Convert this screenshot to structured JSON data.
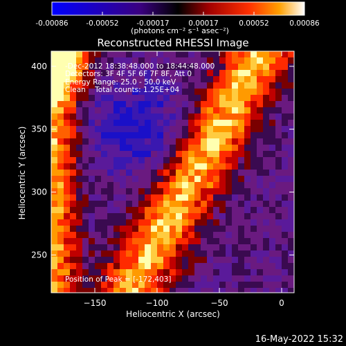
{
  "colorbar": {
    "ticks": [
      "-0.00086",
      "-0.00052",
      "-0.00017",
      "0.00017",
      "0.00052",
      "0.00086"
    ],
    "unit_label": "(photons cm⁻² s⁻¹ asec⁻²)"
  },
  "chart_data": {
    "type": "heatmap",
    "title": "Reconstructed RHESSI Image",
    "xlabel": "Heliocentric X (arcsec)",
    "ylabel": "Heliocentric Y (arcsec)",
    "xlim": [
      -185,
      10
    ],
    "ylim": [
      220,
      412
    ],
    "xticks": [
      -150,
      -100,
      -50,
      0
    ],
    "yticks": [
      250,
      300,
      350,
      400
    ],
    "grid": false,
    "annotations": [
      "-Dec-2012 18:38:48.000 to 18:44:48.000",
      "Detectors: 3F 4F 5F 6F 7F 8F, Att 0",
      "Energy Range: 25.0 - 50.0 keV",
      "Clean    Total counts: 1.25E+04"
    ],
    "peak_label": "Position of Peak = [-172,403]",
    "peak": [
      -172,
      403
    ]
  },
  "footer": {
    "timestamp": "16-May-2022 15:32"
  }
}
